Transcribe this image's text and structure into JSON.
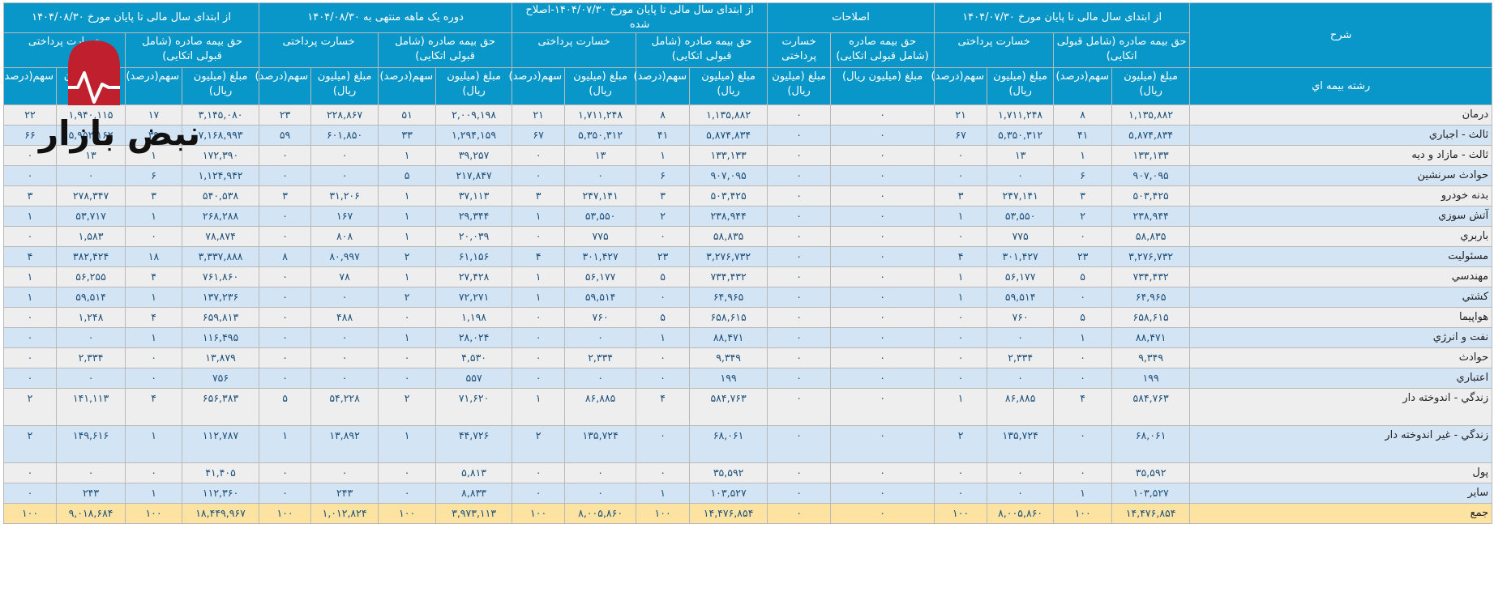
{
  "table": {
    "row_header_group": "شرح",
    "row_header": "رشته بيمه اي",
    "sections": [
      {
        "title": "از ابتدای سال مالی تا پایان مورخ ۱۴۰۴/۰۷/۳۰"
      },
      {
        "title": "اصلاحات"
      },
      {
        "title": "از ابتدای سال مالی تا پایان مورخ ۱۴۰۴/۰۷/۳۰-اصلاح شده"
      },
      {
        "title": "دوره یک ماهه منتهی به ۱۴۰۴/۰۸/۳۰"
      },
      {
        "title": "از ابتدای سال مالی تا پایان مورخ ۱۴۰۴/۰۸/۳۰"
      }
    ],
    "subheaders": {
      "premium": "حق بیمه صادره (شامل قبولی اتکایی)",
      "claims": "خسارت پرداختی"
    },
    "col_headers": {
      "amount": "مبلغ (میلیون ریال)",
      "share": "سهم(درصد)"
    },
    "rows": [
      {
        "label": "درمان",
        "v": [
          "۱,۱۳۵,۸۸۲",
          "۸",
          "۱,۷۱۱,۲۴۸",
          "۲۱",
          "۰",
          "۰",
          "۱,۱۳۵,۸۸۲",
          "۸",
          "۱,۷۱۱,۲۴۸",
          "۲۱",
          "۲,۰۰۹,۱۹۸",
          "۵۱",
          "۲۲۸,۸۶۷",
          "۲۳",
          "۳,۱۴۵,۰۸۰",
          "۱۷",
          "۱,۹۴۰,۱۱۵",
          "۲۲"
        ]
      },
      {
        "label": "ثالث - اجباري",
        "v": [
          "۵,۸۷۴,۸۳۴",
          "۴۱",
          "۵,۳۵۰,۳۱۲",
          "۶۷",
          "۰",
          "۰",
          "۵,۸۷۴,۸۳۴",
          "۴۱",
          "۵,۳۵۰,۳۱۲",
          "۶۷",
          "۱,۲۹۴,۱۵۹",
          "۳۳",
          "۶۰۱,۸۵۰",
          "۵۹",
          "۷,۱۶۸,۹۹۳",
          "۳۹",
          "۵,۹۵۲,۱۶۲",
          "۶۶"
        ]
      },
      {
        "label": "ثالث - مازاد و ديه",
        "v": [
          "۱۳۳,۱۳۳",
          "۱",
          "۱۳",
          "۰",
          "۰",
          "۰",
          "۱۳۳,۱۳۳",
          "۱",
          "۱۳",
          "۰",
          "۳۹,۲۵۷",
          "۱",
          "۰",
          "۰",
          "۱۷۲,۳۹۰",
          "۱",
          "۱۳",
          "۰"
        ]
      },
      {
        "label": "حوادث سرنشين",
        "v": [
          "۹۰۷,۰۹۵",
          "۶",
          "۰",
          "۰",
          "۰",
          "۰",
          "۹۰۷,۰۹۵",
          "۶",
          "۰",
          "۰",
          "۲۱۷,۸۴۷",
          "۵",
          "۰",
          "۰",
          "۱,۱۲۴,۹۴۲",
          "۶",
          "۰",
          "۰"
        ]
      },
      {
        "label": "بدنه خودرو",
        "v": [
          "۵۰۳,۴۲۵",
          "۳",
          "۲۴۷,۱۴۱",
          "۳",
          "۰",
          "۰",
          "۵۰۳,۴۲۵",
          "۳",
          "۲۴۷,۱۴۱",
          "۳",
          "۳۷,۱۱۳",
          "۱",
          "۳۱,۲۰۶",
          "۳",
          "۵۴۰,۵۳۸",
          "۳",
          "۲۷۸,۳۴۷",
          "۳"
        ]
      },
      {
        "label": "آتش سوزي",
        "v": [
          "۲۳۸,۹۴۴",
          "۲",
          "۵۳,۵۵۰",
          "۱",
          "۰",
          "۰",
          "۲۳۸,۹۴۴",
          "۲",
          "۵۳,۵۵۰",
          "۱",
          "۲۹,۳۴۴",
          "۱",
          "۱۶۷",
          "۰",
          "۲۶۸,۲۸۸",
          "۱",
          "۵۳,۷۱۷",
          "۱"
        ]
      },
      {
        "label": "باربري",
        "v": [
          "۵۸,۸۳۵",
          "۰",
          "۷۷۵",
          "۰",
          "۰",
          "۰",
          "۵۸,۸۳۵",
          "۰",
          "۷۷۵",
          "۰",
          "۲۰,۰۳۹",
          "۱",
          "۸۰۸",
          "۰",
          "۷۸,۸۷۴",
          "۰",
          "۱,۵۸۳",
          "۰"
        ]
      },
      {
        "label": "مسئوليت",
        "v": [
          "۳,۲۷۶,۷۳۲",
          "۲۳",
          "۳۰۱,۴۲۷",
          "۴",
          "۰",
          "۰",
          "۳,۲۷۶,۷۳۲",
          "۲۳",
          "۳۰۱,۴۲۷",
          "۴",
          "۶۱,۱۵۶",
          "۲",
          "۸۰,۹۹۷",
          "۸",
          "۳,۳۳۷,۸۸۸",
          "۱۸",
          "۳۸۲,۴۲۴",
          "۴"
        ]
      },
      {
        "label": "مهندسي",
        "v": [
          "۷۳۴,۴۳۲",
          "۵",
          "۵۶,۱۷۷",
          "۱",
          "۰",
          "۰",
          "۷۳۴,۴۳۲",
          "۵",
          "۵۶,۱۷۷",
          "۱",
          "۲۷,۴۲۸",
          "۱",
          "۷۸",
          "۰",
          "۷۶۱,۸۶۰",
          "۴",
          "۵۶,۲۵۵",
          "۱"
        ]
      },
      {
        "label": "كشتي",
        "v": [
          "۶۴,۹۶۵",
          "۰",
          "۵۹,۵۱۴",
          "۱",
          "۰",
          "۰",
          "۶۴,۹۶۵",
          "۰",
          "۵۹,۵۱۴",
          "۱",
          "۷۲,۲۷۱",
          "۲",
          "۰",
          "۰",
          "۱۳۷,۲۳۶",
          "۱",
          "۵۹,۵۱۴",
          "۱"
        ]
      },
      {
        "label": "هواپيما",
        "v": [
          "۶۵۸,۶۱۵",
          "۵",
          "۷۶۰",
          "۰",
          "۰",
          "۰",
          "۶۵۸,۶۱۵",
          "۵",
          "۷۶۰",
          "۰",
          "۱,۱۹۸",
          "۰",
          "۴۸۸",
          "۰",
          "۶۵۹,۸۱۳",
          "۴",
          "۱,۲۴۸",
          "۰"
        ]
      },
      {
        "label": "نفت و انرژي",
        "v": [
          "۸۸,۴۷۱",
          "۱",
          "۰",
          "۰",
          "۰",
          "۰",
          "۸۸,۴۷۱",
          "۱",
          "۰",
          "۰",
          "۲۸,۰۲۴",
          "۱",
          "۰",
          "۰",
          "۱۱۶,۴۹۵",
          "۱",
          "۰",
          "۰"
        ]
      },
      {
        "label": "حوادث",
        "v": [
          "۹,۳۴۹",
          "۰",
          "۲,۳۳۴",
          "۰",
          "۰",
          "۰",
          "۹,۳۴۹",
          "۰",
          "۲,۳۳۴",
          "۰",
          "۴,۵۳۰",
          "۰",
          "۰",
          "۰",
          "۱۳,۸۷۹",
          "۰",
          "۲,۳۳۴",
          "۰"
        ]
      },
      {
        "label": "اعتباري",
        "v": [
          "۱۹۹",
          "۰",
          "۰",
          "۰",
          "۰",
          "۰",
          "۱۹۹",
          "۰",
          "۰",
          "۰",
          "۵۵۷",
          "۰",
          "۰",
          "۰",
          "۷۵۶",
          "۰",
          "۰",
          "۰"
        ]
      },
      {
        "label": "زندگي - اندوخته دار",
        "tall": true,
        "v": [
          "۵۸۴,۷۶۳",
          "۴",
          "۸۶,۸۸۵",
          "۱",
          "۰",
          "۰",
          "۵۸۴,۷۶۳",
          "۴",
          "۸۶,۸۸۵",
          "۱",
          "۷۱,۶۲۰",
          "۲",
          "۵۴,۲۲۸",
          "۵",
          "۶۵۶,۳۸۳",
          "۴",
          "۱۴۱,۱۱۳",
          "۲"
        ]
      },
      {
        "label": "زندگي - غير اندوخته دار",
        "tall": true,
        "v": [
          "۶۸,۰۶۱",
          "۰",
          "۱۳۵,۷۲۴",
          "۲",
          "۰",
          "۰",
          "۶۸,۰۶۱",
          "۰",
          "۱۳۵,۷۲۴",
          "۲",
          "۴۴,۷۲۶",
          "۱",
          "۱۳,۸۹۲",
          "۱",
          "۱۱۲,۷۸۷",
          "۱",
          "۱۴۹,۶۱۶",
          "۲"
        ]
      },
      {
        "label": "پول",
        "v": [
          "۳۵,۵۹۲",
          "۰",
          "۰",
          "۰",
          "۰",
          "۰",
          "۳۵,۵۹۲",
          "۰",
          "۰",
          "۰",
          "۵,۸۱۳",
          "۰",
          "۰",
          "۰",
          "۴۱,۴۰۵",
          "۰",
          "۰",
          "۰"
        ]
      },
      {
        "label": "ساير",
        "v": [
          "۱۰۳,۵۲۷",
          "۱",
          "۰",
          "۰",
          "۰",
          "۰",
          "۱۰۳,۵۲۷",
          "۱",
          "۰",
          "۰",
          "۸,۸۳۳",
          "۰",
          "۲۴۳",
          "۰",
          "۱۱۲,۳۶۰",
          "۱",
          "۲۴۳",
          "۰"
        ]
      }
    ],
    "total": {
      "label": "جمع",
      "v": [
        "۱۴,۴۷۶,۸۵۴",
        "۱۰۰",
        "۸,۰۰۵,۸۶۰",
        "۱۰۰",
        "۰",
        "۰",
        "۱۴,۴۷۶,۸۵۴",
        "۱۰۰",
        "۸,۰۰۵,۸۶۰",
        "۱۰۰",
        "۳,۹۷۳,۱۱۳",
        "۱۰۰",
        "۱,۰۱۲,۸۲۴",
        "۱۰۰",
        "۱۸,۴۴۹,۹۶۷",
        "۱۰۰",
        "۹,۰۱۸,۶۸۴",
        "۱۰۰"
      ]
    }
  },
  "watermark": {
    "text": "نبض بازار",
    "logo_color": "#c0202e"
  },
  "colors": {
    "header_bg": "#0897c8",
    "row_odd": "#eeeeee",
    "row_even": "#d3e4f4",
    "total_row": "#fde3a2",
    "value_text": "#1c4f7a"
  }
}
